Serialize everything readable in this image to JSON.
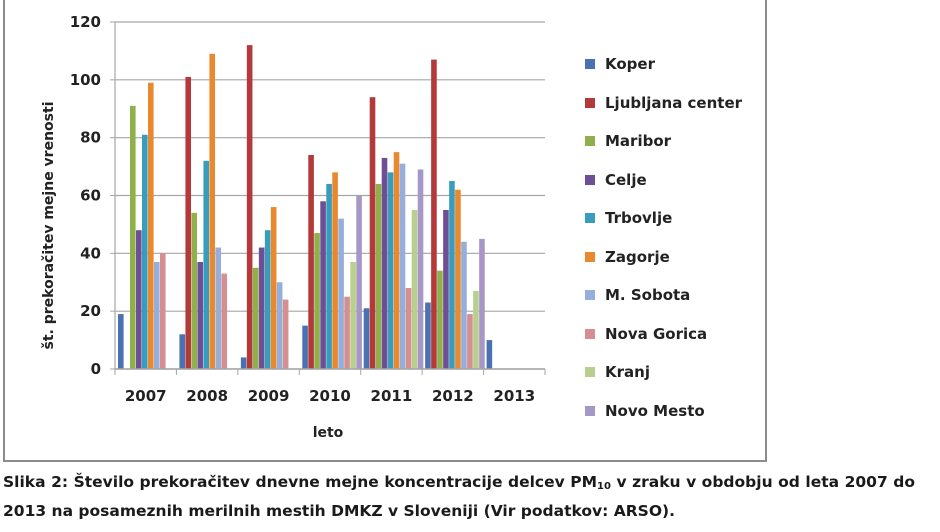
{
  "chart_data": {
    "type": "bar",
    "title": "",
    "xlabel": "leto",
    "ylabel": "št. prekoračitev mejne vrenosti",
    "ylim": [
      0,
      120
    ],
    "yticks": [
      0,
      20,
      40,
      60,
      80,
      100,
      120
    ],
    "grid": true,
    "legend_position": "right",
    "categories": [
      "2007",
      "2008",
      "2009",
      "2010",
      "2011",
      "2012",
      "2013"
    ],
    "series": [
      {
        "name": "Koper",
        "color": "#4a72b0",
        "values": [
          19,
          12,
          4,
          15,
          21,
          23,
          10
        ]
      },
      {
        "name": "Ljubljana center",
        "color": "#b3393a",
        "values": [
          null,
          101,
          112,
          74,
          94,
          107,
          null
        ]
      },
      {
        "name": "Maribor",
        "color": "#8fb04a",
        "values": [
          91,
          54,
          35,
          47,
          64,
          34,
          null
        ]
      },
      {
        "name": "Celje",
        "color": "#6e4f96",
        "values": [
          48,
          37,
          42,
          58,
          73,
          55,
          null
        ]
      },
      {
        "name": "Trbovlje",
        "color": "#3a9cbc",
        "values": [
          81,
          72,
          48,
          64,
          68,
          65,
          null
        ]
      },
      {
        "name": "Zagorje",
        "color": "#e8882f",
        "values": [
          99,
          109,
          56,
          68,
          75,
          62,
          null
        ]
      },
      {
        "name": "M. Sobota",
        "color": "#95aedb",
        "values": [
          37,
          42,
          30,
          52,
          71,
          44,
          null
        ]
      },
      {
        "name": "Nova Gorica",
        "color": "#d58f90",
        "values": [
          40,
          33,
          24,
          25,
          28,
          19,
          null
        ]
      },
      {
        "name": "Kranj",
        "color": "#b8d08e",
        "values": [
          null,
          null,
          null,
          37,
          55,
          27,
          null
        ]
      },
      {
        "name": "Novo Mesto",
        "color": "#a797c6",
        "values": [
          null,
          null,
          null,
          60,
          69,
          45,
          null
        ]
      }
    ]
  },
  "caption": {
    "prefix": "Slika 2: Število prekoračitev dnevne mejne koncentracije delcev PM",
    "subscript": "10",
    "suffix": " v zraku v obdobju od leta 2007 do 2013 na posameznih merilnih mestih DMKZ v Sloveniji (Vir podatkov: ARSO)."
  }
}
